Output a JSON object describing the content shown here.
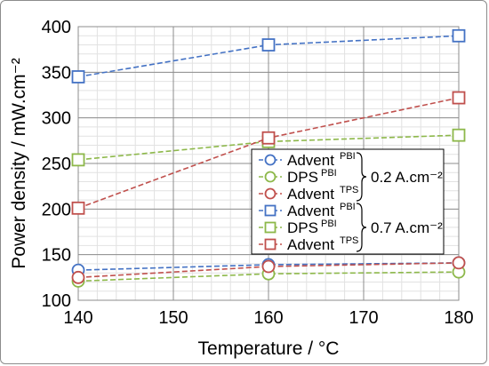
{
  "chart_data": {
    "type": "line",
    "xlabel": "Temperature / °C",
    "ylabel": "Power density / mW.cm⁻²",
    "xlim": [
      140,
      180
    ],
    "ylim": [
      100,
      400
    ],
    "x_ticks": [
      140,
      150,
      160,
      170,
      180
    ],
    "y_ticks": [
      100,
      150,
      200,
      250,
      300,
      350,
      400
    ],
    "grid": true,
    "legend_position": "center-right",
    "legend_groups": [
      {
        "label": "0.2 A.cm⁻²",
        "series_indices": [
          0,
          1,
          2
        ]
      },
      {
        "label": "0.7 A.cm⁻²",
        "series_indices": [
          3,
          4,
          5
        ]
      }
    ],
    "series": [
      {
        "name": "Advent",
        "sup": "PBI",
        "marker": "circle",
        "color": "#4472C4",
        "x": [
          140,
          160,
          180
        ],
        "values": [
          133,
          139,
          141
        ]
      },
      {
        "name": "DPS",
        "sup": "PBI",
        "marker": "circle",
        "color": "#8DB84A",
        "x": [
          140,
          160,
          180
        ],
        "values": [
          121,
          129,
          131
        ]
      },
      {
        "name": "Advent",
        "sup": "TPS",
        "marker": "circle",
        "color": "#C0504D",
        "x": [
          140,
          160,
          180
        ],
        "values": [
          125,
          137,
          141
        ]
      },
      {
        "name": "Advent",
        "sup": "PBI",
        "marker": "square",
        "color": "#4472C4",
        "x": [
          140,
          160,
          180
        ],
        "values": [
          345,
          380,
          390
        ]
      },
      {
        "name": "DPS",
        "sup": "PBI",
        "marker": "square",
        "color": "#8DB84A",
        "x": [
          140,
          160,
          180
        ],
        "values": [
          254,
          274,
          281
        ]
      },
      {
        "name": "Advent",
        "sup": "TPS",
        "marker": "square",
        "color": "#C0504D",
        "x": [
          140,
          160,
          180
        ],
        "values": [
          201,
          278,
          322
        ]
      }
    ]
  }
}
